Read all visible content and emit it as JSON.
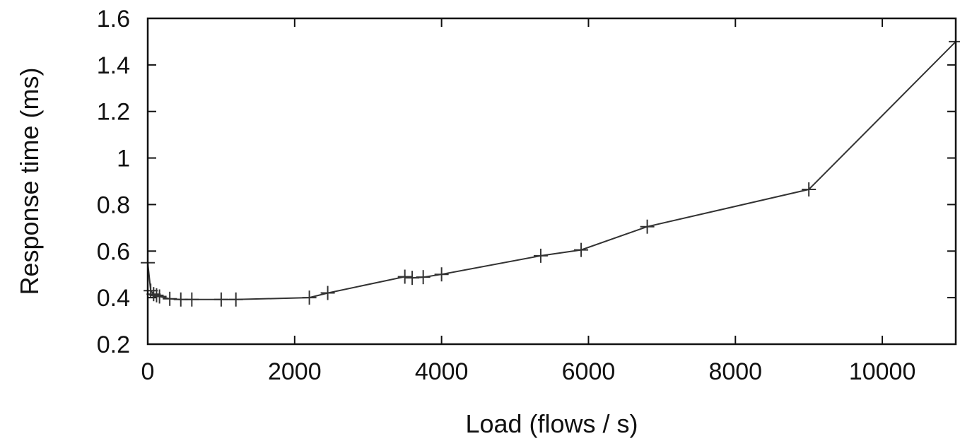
{
  "chart_data": {
    "type": "line",
    "title": "",
    "xlabel": "Load (flows / s)",
    "ylabel": "Response time (ms)",
    "xlim": [
      0,
      11000
    ],
    "ylim": [
      0.2,
      1.6
    ],
    "x_ticks": [
      0,
      2000,
      4000,
      6000,
      8000,
      10000
    ],
    "x_tick_labels": [
      "0",
      "2000",
      "4000",
      "6000",
      "8000",
      "10000"
    ],
    "y_ticks": [
      0.2,
      0.4,
      0.6,
      0.8,
      1.0,
      1.2,
      1.4,
      1.6
    ],
    "y_tick_labels": [
      "0.2",
      "0.4",
      "0.6",
      "0.8",
      "1",
      "1.2",
      "1.4",
      "1.6"
    ],
    "grid": false,
    "marker": "plus",
    "line_color": "#333333",
    "series": [
      {
        "x": [
          0,
          40,
          80,
          120,
          160,
          300,
          450,
          600,
          1000,
          1200,
          2200,
          2450,
          3500,
          3600,
          3750,
          4000,
          5350,
          5900,
          6800,
          9000,
          11000
        ],
        "y": [
          0.55,
          0.43,
          0.415,
          0.41,
          0.405,
          0.395,
          0.392,
          0.392,
          0.392,
          0.392,
          0.4,
          0.42,
          0.49,
          0.485,
          0.488,
          0.5,
          0.58,
          0.605,
          0.705,
          0.865,
          1.5
        ]
      }
    ]
  }
}
